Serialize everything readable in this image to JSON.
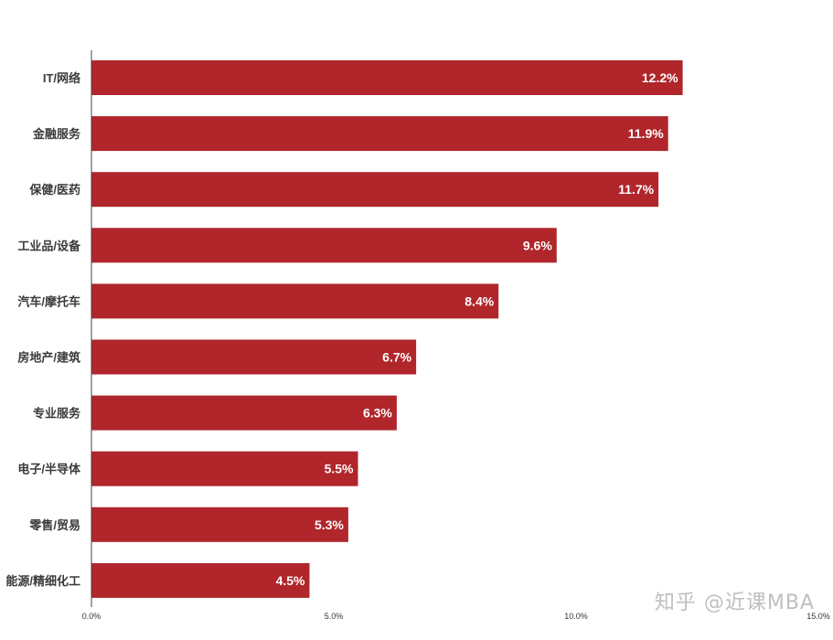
{
  "chart_data": {
    "type": "bar",
    "orientation": "horizontal",
    "categories": [
      "IT/网络",
      "金融服务",
      "保健/医药",
      "工业品/设备",
      "汽车/摩托车",
      "房地产/建筑",
      "专业服务",
      "电子/半导体",
      "零售/贸易",
      "能源/精细化工"
    ],
    "values": [
      12.2,
      11.9,
      11.7,
      9.6,
      8.4,
      6.7,
      6.3,
      5.5,
      5.3,
      4.5
    ],
    "value_labels": [
      "12.2%",
      "11.9%",
      "11.7%",
      "9.6%",
      "8.4%",
      "6.7%",
      "6.3%",
      "5.5%",
      "5.3%",
      "4.5%"
    ],
    "xlim": [
      0,
      15
    ],
    "x_ticks": [
      0,
      5,
      10,
      15
    ],
    "x_tick_labels": [
      "0.0%",
      "5.0%",
      "10.0%",
      "15.0%"
    ],
    "bar_color": "#b0262b",
    "grid": false,
    "title": "",
    "xlabel": "",
    "ylabel": ""
  },
  "watermark": "知乎 @近课MBA"
}
